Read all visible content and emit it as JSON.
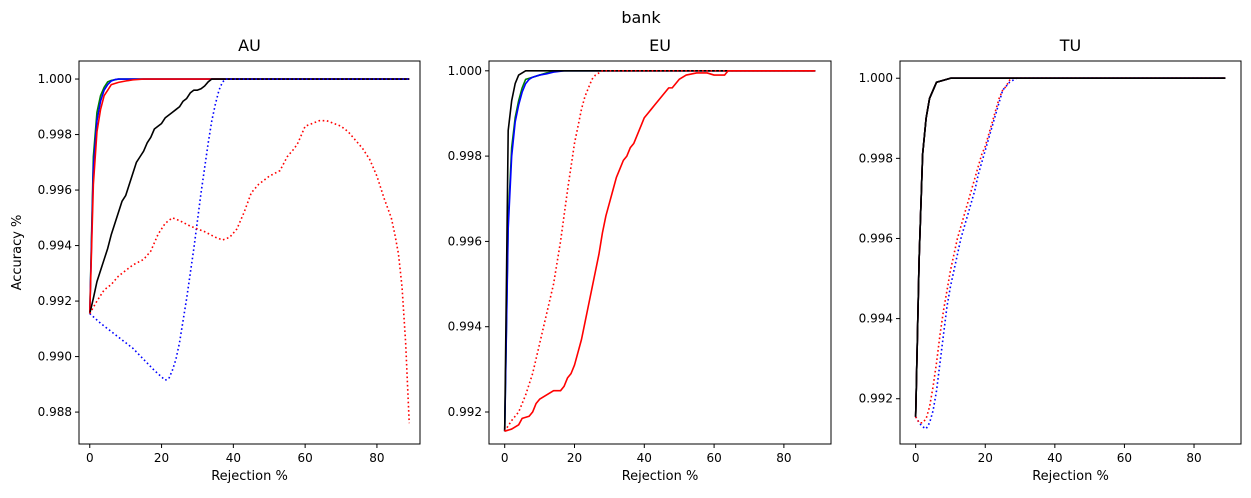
{
  "figure": {
    "suptitle": "bank"
  },
  "chart_data": [
    {
      "type": "line",
      "title": "AU",
      "xlabel": "Rejection %",
      "ylabel": "Accuracy %",
      "xlim": [
        -3,
        92
      ],
      "ylim": [
        0.98685,
        1.00065
      ],
      "xticks": [
        0,
        20,
        40,
        60,
        80
      ],
      "yticks": [
        0.988,
        0.99,
        0.992,
        0.994,
        0.996,
        0.998,
        1.0
      ],
      "ytick_labels": [
        "0.988",
        "0.990",
        "0.992",
        "0.994",
        "0.996",
        "0.998",
        "1.000"
      ],
      "grid": false,
      "series": [
        {
          "color": "#008000",
          "dash": "solid",
          "x": [
            0,
            1,
            2,
            3,
            4,
            5,
            6,
            8,
            10,
            15,
            20,
            30,
            40,
            60,
            89
          ],
          "y": [
            0.99155,
            0.9972,
            0.9988,
            0.9994,
            0.9997,
            0.9999,
            0.99995,
            1.0,
            1.0,
            1.0,
            1.0,
            1.0,
            1.0,
            1.0,
            1.0
          ]
        },
        {
          "color": "#0000ff",
          "dash": "solid",
          "x": [
            0,
            1,
            2,
            3,
            4,
            5,
            6,
            7,
            8,
            10,
            15,
            20,
            40,
            89
          ],
          "y": [
            0.99155,
            0.9968,
            0.9985,
            0.9992,
            0.9996,
            0.9998,
            0.99993,
            0.99998,
            1.0,
            1.0,
            1.0,
            1.0,
            1.0,
            1.0
          ]
        },
        {
          "color": "#ff0000",
          "dash": "solid",
          "x": [
            0,
            1,
            2,
            3,
            4,
            5,
            6,
            8,
            10,
            12,
            15,
            20,
            30,
            40,
            60,
            89
          ],
          "y": [
            0.99155,
            0.9962,
            0.9981,
            0.9989,
            0.9994,
            0.9996,
            0.9998,
            0.99988,
            0.99993,
            0.99997,
            1.0,
            1.0,
            1.0,
            1.0,
            1.0,
            1.0
          ]
        },
        {
          "color": "#000000",
          "dash": "solid",
          "x": [
            0,
            1,
            2,
            3,
            4,
            5,
            6,
            7,
            8,
            9,
            10,
            11,
            12,
            13,
            14,
            15,
            16,
            17,
            18,
            19,
            20,
            21,
            22,
            23,
            24,
            25,
            26,
            27,
            28,
            29,
            30,
            31,
            32,
            33,
            34,
            35,
            36,
            40,
            60,
            89
          ],
          "y": [
            0.99155,
            0.9921,
            0.9927,
            0.9931,
            0.9935,
            0.9939,
            0.9944,
            0.9948,
            0.9952,
            0.9956,
            0.9958,
            0.9962,
            0.9966,
            0.997,
            0.9972,
            0.9974,
            0.9977,
            0.9979,
            0.9982,
            0.9983,
            0.9984,
            0.9986,
            0.9987,
            0.9988,
            0.9989,
            0.999,
            0.9992,
            0.9993,
            0.9995,
            0.9996,
            0.9996,
            0.99965,
            0.99975,
            0.9999,
            1.0,
            1.0,
            1.0,
            1.0,
            1.0,
            1.0
          ]
        },
        {
          "color": "#0000ff",
          "dash": "dotted",
          "x": [
            0,
            3,
            6,
            9,
            12,
            15,
            18,
            21,
            22,
            23,
            24,
            25,
            26,
            27,
            28,
            29,
            30,
            31,
            32,
            33,
            34,
            35,
            36,
            37,
            38,
            40,
            60,
            89
          ],
          "y": [
            0.99155,
            0.9912,
            0.9909,
            0.9906,
            0.9903,
            0.9899,
            0.9895,
            0.98915,
            0.9892,
            0.9895,
            0.9899,
            0.9905,
            0.9913,
            0.9921,
            0.993,
            0.9939,
            0.9949,
            0.9959,
            0.9968,
            0.9977,
            0.9985,
            0.9991,
            0.9996,
            0.9999,
            1.0,
            1.0,
            1.0,
            1.0
          ]
        },
        {
          "color": "#ff0000",
          "dash": "dotted",
          "x": [
            0,
            2,
            4,
            6,
            8,
            10,
            12,
            15,
            17,
            19,
            21,
            23,
            25,
            28,
            32,
            35,
            37,
            39,
            41,
            43,
            45,
            47,
            50,
            53,
            55,
            57,
            58,
            60,
            62,
            64,
            66,
            68,
            70,
            72,
            74,
            76,
            78,
            80,
            82,
            84,
            85,
            86,
            87,
            88,
            89
          ],
          "y": [
            0.99155,
            0.992,
            0.9924,
            0.9926,
            0.9929,
            0.9931,
            0.9933,
            0.9935,
            0.9938,
            0.9944,
            0.9948,
            0.995,
            0.9949,
            0.9947,
            0.9945,
            0.9943,
            0.9942,
            0.9943,
            0.9946,
            0.9952,
            0.9959,
            0.9962,
            0.9965,
            0.9967,
            0.9972,
            0.9975,
            0.9977,
            0.9983,
            0.9984,
            0.9985,
            0.9985,
            0.9984,
            0.9983,
            0.9981,
            0.9978,
            0.9975,
            0.9971,
            0.9965,
            0.9957,
            0.995,
            0.9944,
            0.9937,
            0.9925,
            0.9905,
            0.9876
          ]
        }
      ]
    },
    {
      "type": "line",
      "title": "EU",
      "xlabel": "Rejection %",
      "ylabel": "",
      "xlim": [
        -4.5,
        93.5
      ],
      "ylim": [
        0.99125,
        1.00023
      ],
      "xticks": [
        0,
        20,
        40,
        60,
        80
      ],
      "yticks": [
        0.992,
        0.994,
        0.996,
        0.998,
        1.0
      ],
      "ytick_labels": [
        "0.992",
        "0.994",
        "0.996",
        "0.998",
        "1.000"
      ],
      "grid": false,
      "series": [
        {
          "color": "#008000",
          "dash": "solid",
          "x": [
            0,
            1,
            2,
            3,
            4,
            5,
            6,
            8,
            10,
            12,
            15,
            20,
            40,
            89
          ],
          "y": [
            0.99155,
            0.9965,
            0.9982,
            0.9989,
            0.9993,
            0.9996,
            0.9998,
            0.99985,
            0.9999,
            0.99995,
            1.0,
            1.0,
            1.0,
            1.0
          ]
        },
        {
          "color": "#0000ff",
          "dash": "solid",
          "x": [
            0,
            1,
            2,
            3,
            4,
            5,
            6,
            7,
            8,
            10,
            12,
            14,
            17,
            20,
            40,
            89
          ],
          "y": [
            0.99155,
            0.9963,
            0.998,
            0.9988,
            0.9992,
            0.9995,
            0.9997,
            0.9998,
            0.99985,
            0.9999,
            0.99993,
            0.99997,
            1.0,
            1.0,
            1.0,
            1.0
          ]
        },
        {
          "color": "#000000",
          "dash": "solid",
          "x": [
            0,
            1,
            2,
            3,
            4,
            5,
            6,
            8,
            10,
            15,
            20,
            40,
            60,
            89
          ],
          "y": [
            0.99155,
            0.9986,
            0.9993,
            0.9997,
            0.9999,
            0.99995,
            1.0,
            1.0,
            1.0,
            1.0,
            1.0,
            1.0,
            1.0,
            1.0
          ]
        },
        {
          "color": "#ff0000",
          "dash": "dotted",
          "x": [
            0,
            2,
            4,
            6,
            8,
            10,
            12,
            14,
            16,
            18,
            20,
            21,
            22,
            23,
            24,
            25,
            26,
            27,
            28,
            29,
            30,
            31,
            32,
            33,
            35,
            40,
            60,
            89
          ],
          "y": [
            0.99155,
            0.9918,
            0.992,
            0.9924,
            0.9929,
            0.9936,
            0.9943,
            0.995,
            0.996,
            0.9972,
            0.9983,
            0.9987,
            0.9991,
            0.9994,
            0.9996,
            0.9998,
            0.9999,
            0.99995,
            1.0,
            1.0,
            1.0,
            1.0,
            1.0,
            1.0,
            1.0,
            1.0,
            1.0,
            1.0
          ]
        },
        {
          "color": "#ff0000",
          "dash": "solid",
          "x": [
            0,
            2,
            4,
            5,
            7,
            8,
            9,
            10,
            12,
            14,
            15,
            16,
            17,
            18,
            19,
            20,
            21,
            22,
            23,
            24,
            25,
            26,
            27,
            28,
            29,
            30,
            31,
            32,
            33,
            34,
            35,
            36,
            37,
            38,
            39,
            40,
            41,
            42,
            43,
            44,
            45,
            46,
            47,
            48,
            49,
            50,
            51,
            52,
            55,
            58,
            60,
            63,
            64,
            89
          ],
          "y": [
            0.99155,
            0.9916,
            0.9917,
            0.99185,
            0.9919,
            0.992,
            0.9922,
            0.9923,
            0.9924,
            0.9925,
            0.9925,
            0.9925,
            0.9926,
            0.9928,
            0.9929,
            0.9931,
            0.9934,
            0.9937,
            0.9941,
            0.9945,
            0.9949,
            0.9953,
            0.9957,
            0.9962,
            0.9966,
            0.9969,
            0.9972,
            0.9975,
            0.9977,
            0.9979,
            0.998,
            0.9982,
            0.9983,
            0.9985,
            0.9987,
            0.9989,
            0.999,
            0.9991,
            0.9992,
            0.9993,
            0.9994,
            0.9995,
            0.9996,
            0.9996,
            0.9997,
            0.9998,
            0.99985,
            0.9999,
            0.99995,
            0.99995,
            0.9999,
            0.9999,
            1.0,
            1.0
          ]
        }
      ]
    },
    {
      "type": "line",
      "title": "TU",
      "xlabel": "Rejection %",
      "ylabel": "",
      "xlim": [
        -4.5,
        93.5
      ],
      "ylim": [
        0.99087,
        1.00043
      ],
      "xticks": [
        0,
        20,
        40,
        60,
        80
      ],
      "yticks": [
        0.992,
        0.994,
        0.996,
        0.998,
        1.0
      ],
      "ytick_labels": [
        "0.992",
        "0.994",
        "0.996",
        "0.998",
        "1.000"
      ],
      "grid": false,
      "series": [
        {
          "color": "#008000",
          "dash": "solid",
          "x": [
            0,
            1,
            2,
            3,
            4,
            5,
            6,
            8,
            10,
            12,
            14,
            20,
            40,
            60,
            89
          ],
          "y": [
            0.99155,
            0.9955,
            0.9981,
            0.999,
            0.9995,
            0.9997,
            0.9999,
            0.99995,
            1.0,
            1.0,
            1.0,
            1.0,
            1.0,
            1.0,
            1.0
          ]
        },
        {
          "color": "#0000ff",
          "dash": "solid",
          "x": [
            0,
            1,
            2,
            3,
            4,
            5,
            6,
            8,
            10,
            12,
            14,
            20,
            40,
            60,
            89
          ],
          "y": [
            0.99155,
            0.9955,
            0.9981,
            0.999,
            0.9995,
            0.9997,
            0.9999,
            0.99995,
            1.0,
            1.0,
            1.0,
            1.0,
            1.0,
            1.0,
            1.0
          ]
        },
        {
          "color": "#ff0000",
          "dash": "solid",
          "x": [
            0,
            1,
            2,
            3,
            4,
            5,
            6,
            8,
            10,
            12,
            14,
            20,
            40,
            60,
            89
          ],
          "y": [
            0.99155,
            0.9955,
            0.9981,
            0.999,
            0.9995,
            0.9997,
            0.9999,
            0.99995,
            1.0,
            1.0,
            1.0,
            1.0,
            1.0,
            1.0,
            1.0
          ]
        },
        {
          "color": "#000000",
          "dash": "solid",
          "x": [
            0,
            1,
            2,
            3,
            4,
            5,
            6,
            8,
            10,
            12,
            14,
            20,
            40,
            60,
            89
          ],
          "y": [
            0.99155,
            0.9955,
            0.9981,
            0.999,
            0.9995,
            0.9997,
            0.9999,
            0.99995,
            1.0,
            1.0,
            1.0,
            1.0,
            1.0,
            1.0,
            1.0
          ]
        },
        {
          "color": "#0000ff",
          "dash": "dotted",
          "x": [
            0,
            1,
            2,
            3,
            4,
            5,
            6,
            7,
            8,
            9,
            10,
            11,
            12,
            13,
            14,
            15,
            16,
            17,
            18,
            19,
            20,
            21,
            22,
            23,
            24,
            25,
            26,
            27,
            28,
            29,
            30,
            32,
            40,
            60,
            89
          ],
          "y": [
            0.99155,
            0.9914,
            0.9913,
            0.99125,
            0.9914,
            0.9917,
            0.9922,
            0.9929,
            0.9936,
            0.9943,
            0.9948,
            0.9952,
            0.9956,
            0.996,
            0.9963,
            0.9966,
            0.9969,
            0.9972,
            0.9976,
            0.9979,
            0.9982,
            0.9985,
            0.9988,
            0.9991,
            0.9994,
            0.9997,
            0.9998,
            0.9999,
            0.99995,
            1.0,
            1.0,
            1.0,
            1.0,
            1.0,
            1.0
          ]
        },
        {
          "color": "#ff0000",
          "dash": "dotted",
          "x": [
            0,
            1,
            2,
            3,
            4,
            5,
            6,
            7,
            8,
            9,
            10,
            11,
            12,
            13,
            14,
            15,
            16,
            17,
            18,
            19,
            20,
            21,
            22,
            23,
            24,
            25,
            26,
            27,
            28,
            29,
            30,
            32,
            40,
            60,
            89
          ],
          "y": [
            0.99155,
            0.9914,
            0.9914,
            0.9915,
            0.9918,
            0.9923,
            0.9929,
            0.9936,
            0.9942,
            0.9947,
            0.9952,
            0.9956,
            0.996,
            0.9963,
            0.9966,
            0.9969,
            0.9972,
            0.9975,
            0.9978,
            0.9981,
            0.9983,
            0.9986,
            0.9989,
            0.9992,
            0.9995,
            0.9997,
            0.9998,
            0.99995,
            1.0,
            1.0,
            1.0,
            1.0,
            1.0,
            1.0,
            1.0
          ]
        },
        {
          "color": "#000000",
          "dash": "solid",
          "x": [
            0,
            1,
            2,
            3,
            4,
            5,
            6,
            8,
            10,
            12,
            14,
            20,
            40,
            60,
            89
          ],
          "y": [
            0.99155,
            0.9955,
            0.9981,
            0.999,
            0.9995,
            0.9997,
            0.9999,
            0.99995,
            1.0,
            1.0,
            1.0,
            1.0,
            1.0,
            1.0,
            1.0
          ]
        }
      ]
    }
  ]
}
